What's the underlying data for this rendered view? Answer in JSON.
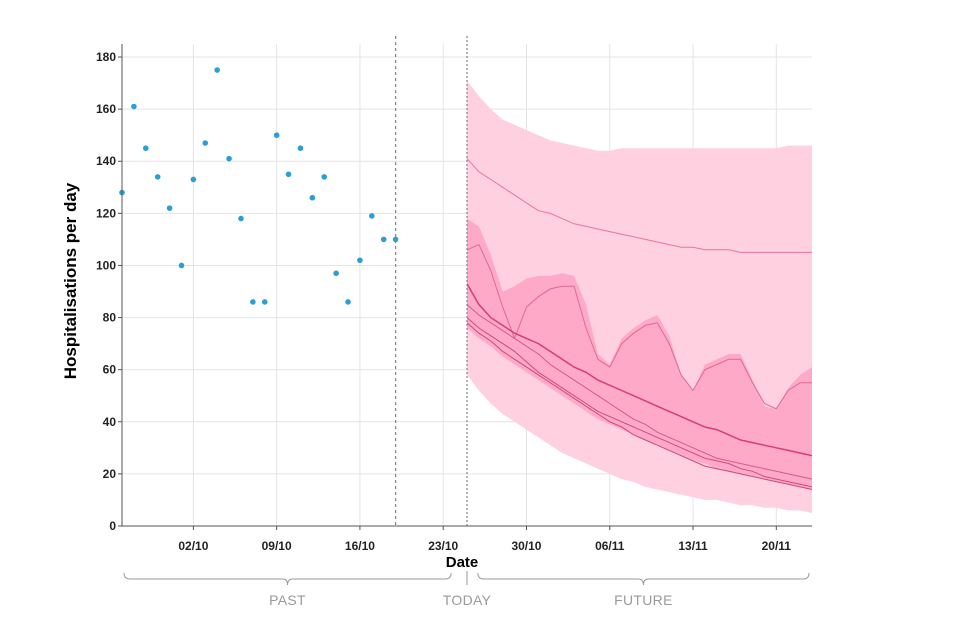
{
  "chart_data": {
    "type": "scatter",
    "title": "",
    "xlabel": "Date",
    "ylabel": "Hospitalisations per day",
    "ylim": [
      0,
      185
    ],
    "xlim": [
      "2021-09-26",
      "2021-11-23"
    ],
    "y_ticks": [
      0,
      20,
      40,
      60,
      80,
      100,
      120,
      140,
      160,
      180
    ],
    "x_ticks": [
      {
        "date": "2021-10-02",
        "label": "02/10"
      },
      {
        "date": "2021-10-09",
        "label": "09/10"
      },
      {
        "date": "2021-10-16",
        "label": "16/10"
      },
      {
        "date": "2021-10-23",
        "label": "23/10"
      },
      {
        "date": "2021-10-30",
        "label": "30/10"
      },
      {
        "date": "2021-11-06",
        "label": "06/11"
      },
      {
        "date": "2021-11-13",
        "label": "13/11"
      },
      {
        "date": "2021-11-20",
        "label": "20/11"
      }
    ],
    "grid": true,
    "observed": {
      "color": "#2a9fd6",
      "x": [
        "2021-09-26",
        "2021-09-27",
        "2021-09-28",
        "2021-09-29",
        "2021-09-30",
        "2021-10-01",
        "2021-10-02",
        "2021-10-03",
        "2021-10-04",
        "2021-10-05",
        "2021-10-06",
        "2021-10-07",
        "2021-10-08",
        "2021-10-09",
        "2021-10-10",
        "2021-10-11",
        "2021-10-12",
        "2021-10-13",
        "2021-10-14",
        "2021-10-15",
        "2021-10-16",
        "2021-10-17",
        "2021-10-18",
        "2021-10-19"
      ],
      "y": [
        128,
        161,
        145,
        134,
        122,
        100,
        133,
        147,
        175,
        141,
        118,
        86,
        86,
        150,
        135,
        145,
        126,
        134,
        97,
        86,
        102,
        119,
        110,
        110
      ]
    },
    "observed_last_date": "2021-10-19",
    "today_date": "2021-10-25",
    "forecast": {
      "x_start": "2021-10-25",
      "x_end": "2021-11-23",
      "outer_band": {
        "color": "#ffd0e0",
        "upper": [
          171,
          165,
          160,
          156,
          154,
          152,
          150,
          148,
          147,
          146,
          145,
          144,
          144,
          145,
          145,
          145,
          145,
          145,
          145,
          145,
          145,
          145,
          145,
          145,
          145,
          145,
          145,
          146,
          146,
          146
        ],
        "lower": [
          58,
          52,
          47,
          43,
          40,
          37,
          34,
          31,
          28,
          26,
          24,
          22,
          20,
          18,
          17,
          15,
          14,
          13,
          12,
          11,
          10,
          10,
          9,
          8,
          8,
          7,
          7,
          6,
          6,
          5
        ]
      },
      "inner_band": {
        "color": "#ffa9c9",
        "upper": [
          118,
          115,
          104,
          90,
          92,
          95,
          96,
          96,
          97,
          96,
          85,
          66,
          62,
          72,
          76,
          79,
          81,
          73,
          58,
          52,
          62,
          64,
          66,
          66,
          56,
          46,
          45,
          53,
          58,
          61
        ],
        "lower": [
          76,
          72,
          69,
          65,
          62,
          59,
          56,
          53,
          50,
          47,
          44,
          41,
          39,
          37,
          35,
          33,
          31,
          29,
          27,
          25,
          24,
          22,
          21,
          20,
          19,
          18,
          17,
          16,
          15,
          14
        ]
      },
      "lines": [
        {
          "color": "#e7759f",
          "width": 1.0,
          "values": [
            141,
            136,
            133,
            130,
            127,
            124,
            121,
            120,
            118,
            116,
            115,
            114,
            113,
            112,
            111,
            110,
            109,
            108,
            107,
            107,
            106,
            106,
            106,
            105,
            105,
            105,
            105,
            105,
            105,
            105
          ]
        },
        {
          "color": "#de6a93",
          "width": 1.0,
          "values": [
            106,
            108,
            98,
            84,
            72,
            84,
            88,
            91,
            92,
            92,
            76,
            64,
            61,
            70,
            74,
            77,
            78,
            70,
            58,
            52,
            60,
            62,
            64,
            64,
            55,
            47,
            45,
            52,
            55,
            55
          ]
        },
        {
          "color": "#d63c76",
          "width": 1.5,
          "values": [
            93,
            85,
            80,
            77,
            74,
            72,
            70,
            67,
            64,
            61,
            59,
            56,
            54,
            52,
            50,
            48,
            46,
            44,
            42,
            40,
            38,
            37,
            35,
            33,
            32,
            31,
            30,
            29,
            28,
            27
          ]
        },
        {
          "color": "#d65a89",
          "width": 1.0,
          "values": [
            85,
            81,
            78,
            75,
            72,
            69,
            66,
            62,
            59,
            56,
            53,
            50,
            47,
            44,
            41,
            39,
            36,
            34,
            32,
            30,
            28,
            26,
            25,
            24,
            23,
            22,
            21,
            20,
            19,
            18
          ]
        },
        {
          "color": "#cf4a7c",
          "width": 1.0,
          "values": [
            80,
            76,
            73,
            70,
            67,
            63,
            59,
            56,
            53,
            50,
            47,
            44,
            42,
            40,
            38,
            36,
            34,
            32,
            30,
            28,
            26,
            25,
            24,
            22,
            21,
            19,
            18,
            17,
            16,
            15
          ]
        },
        {
          "color": "#c94a78",
          "width": 1.0,
          "values": [
            78,
            74,
            71,
            67,
            64,
            61,
            58,
            55,
            52,
            49,
            46,
            43,
            40,
            38,
            35,
            33,
            31,
            29,
            27,
            25,
            23,
            22,
            21,
            20,
            19,
            18,
            17,
            16,
            15,
            14
          ]
        }
      ]
    },
    "periods": [
      {
        "label": "PAST",
        "start": "2021-09-26",
        "end": "2021-10-24"
      },
      {
        "label": "TODAY",
        "at": "2021-10-25"
      },
      {
        "label": "FUTURE",
        "start": "2021-10-26",
        "end": "2021-11-23"
      }
    ]
  }
}
